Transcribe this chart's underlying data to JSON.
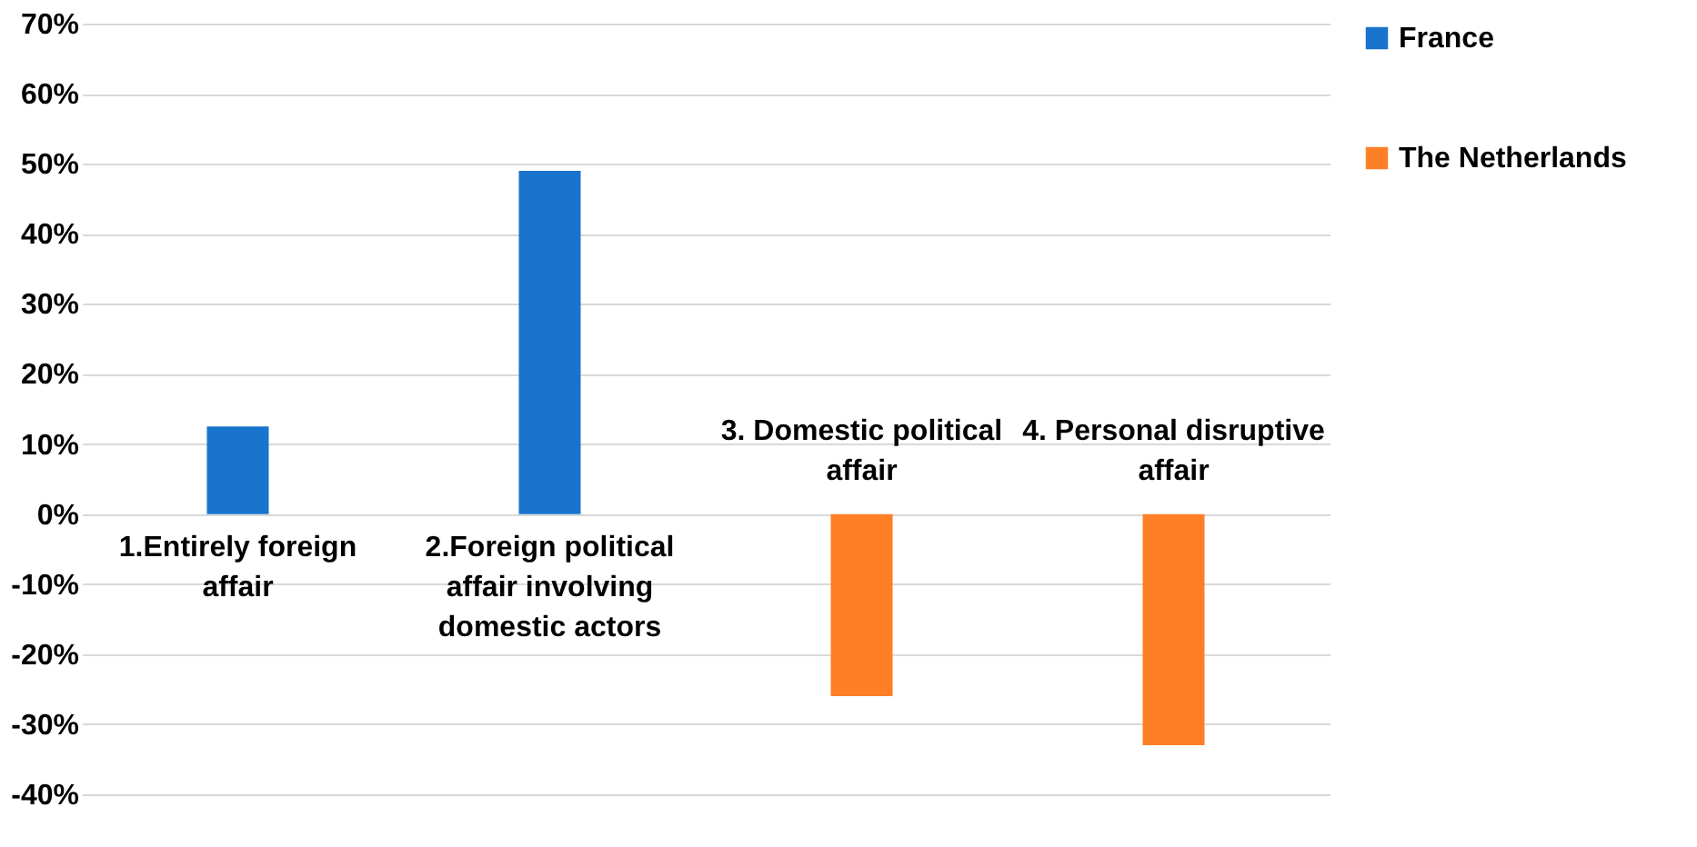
{
  "chart_data": {
    "type": "bar",
    "categories": [
      "1.Entirely foreign affair",
      "2.Foreign political affair involving domestic actors",
      "3. Domestic political affair",
      "4. Personal disruptive affair"
    ],
    "series": [
      {
        "name": "France",
        "color": "#1874cd",
        "values": [
          12.5,
          49,
          null,
          null
        ]
      },
      {
        "name": "The Netherlands",
        "color": "#ff7f27",
        "values": [
          null,
          null,
          -26,
          -33
        ]
      }
    ],
    "ylim": [
      -40,
      70
    ],
    "yticks": [
      {
        "value": -40,
        "label": "-40%"
      },
      {
        "value": -30,
        "label": "-30%"
      },
      {
        "value": -20,
        "label": "-20%"
      },
      {
        "value": -10,
        "label": "-10%"
      },
      {
        "value": 0,
        "label": "0%"
      },
      {
        "value": 10,
        "label": "10%"
      },
      {
        "value": 20,
        "label": "20%"
      },
      {
        "value": 30,
        "label": "30%"
      },
      {
        "value": 40,
        "label": "40%"
      },
      {
        "value": 50,
        "label": "50%"
      },
      {
        "value": 60,
        "label": "60%"
      },
      {
        "value": 70,
        "label": "70%"
      }
    ],
    "grid": "y",
    "legend": "right"
  }
}
